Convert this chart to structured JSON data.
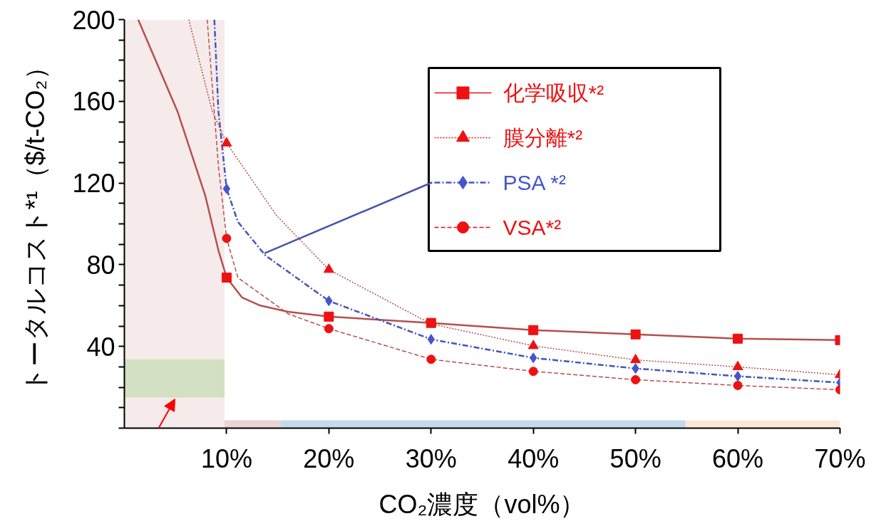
{
  "chart_data": {
    "type": "scatter",
    "xlabel": "CO₂濃度（vol%）",
    "ylabel": "トータルコスト*¹（$/t-CO₂）",
    "xlim": [
      0,
      70
    ],
    "ylim": [
      0,
      200
    ],
    "xticks": [
      {
        "value": 10,
        "label": "10%"
      },
      {
        "value": 20,
        "label": "20%"
      },
      {
        "value": 30,
        "label": "30%"
      },
      {
        "value": 40,
        "label": "40%"
      },
      {
        "value": 50,
        "label": "50%"
      },
      {
        "value": 60,
        "label": "60%"
      },
      {
        "value": 70,
        "label": "70%"
      }
    ],
    "yticks": [
      {
        "value": 0,
        "label": null
      },
      {
        "value": 10,
        "label": null
      },
      {
        "value": 20,
        "label": null
      },
      {
        "value": 30,
        "label": null
      },
      40,
      {
        "value": 50,
        "label": null
      },
      {
        "value": 60,
        "label": null
      },
      {
        "value": 70,
        "label": null
      },
      80,
      {
        "value": 90,
        "label": null
      },
      {
        "value": 100,
        "label": null
      },
      {
        "value": 110,
        "label": null
      },
      120,
      {
        "value": 130,
        "label": null
      },
      {
        "value": 140,
        "label": null
      },
      {
        "value": 150,
        "label": null
      },
      160,
      {
        "value": 170,
        "label": null
      },
      {
        "value": 180,
        "label": null
      },
      {
        "value": 190,
        "label": null
      },
      200
    ],
    "grid": false,
    "legend": "top right",
    "bands": [
      {
        "axis": "x",
        "from": 0,
        "to": 9.8,
        "color": "#f6ebeb"
      },
      {
        "axis": "y",
        "from": 15,
        "to": 33.7,
        "color": "#d3e0c1"
      }
    ],
    "series": [
      {
        "type": "area",
        "color": "#ecd4d4",
        "x": [
          0,
          15.3
        ],
        "values": [
          3.8,
          3.8
        ]
      },
      {
        "type": "area",
        "color": "#c6d9ef",
        "x": [
          15.3,
          54.9
        ],
        "values": [
          3.8,
          3.8
        ]
      },
      {
        "type": "area",
        "color": "#fbe7d8",
        "x": [
          54.9,
          70
        ],
        "values": [
          3.8,
          3.8
        ]
      },
      {
        "type": "line",
        "color": "#4455aa",
        "line_style": "solid",
        "marker": "none",
        "x": [
          13.7,
          30.1
        ],
        "values": [
          85.6,
          120.3
        ]
      },
      {
        "type": "line",
        "color": "#b5504d",
        "line_style": "solid",
        "marker": "none",
        "x": [
          1.35,
          5.2,
          7.9,
          9.2,
          10,
          11.5,
          13.3,
          16,
          20,
          30,
          40,
          50,
          60,
          70
        ],
        "values": [
          200,
          155,
          114,
          87,
          73.7,
          64,
          60,
          57,
          54.6,
          51.5,
          48,
          45.9,
          43.8,
          43.1
        ]
      },
      {
        "type": "line",
        "color": "#b5504d",
        "line_style": "dotted",
        "marker": "none",
        "x": [
          6.3,
          8.6,
          10,
          14.9,
          20,
          30,
          40,
          50,
          60,
          70
        ],
        "values": [
          200,
          155,
          139.5,
          104,
          77.6,
          51,
          40.3,
          33.4,
          30,
          26.1
        ]
      },
      {
        "type": "line",
        "color": "#4455bb",
        "line_style": "dashdot",
        "marker": "none",
        "x": [
          8.8,
          9.2,
          10,
          11.1,
          13.8,
          20,
          30,
          40,
          50,
          60,
          70
        ],
        "values": [
          200,
          155,
          117.2,
          101,
          84.5,
          62.3,
          43.5,
          34.4,
          29.2,
          25.4,
          22.3
        ]
      },
      {
        "type": "line",
        "color": "#b5504d",
        "line_style": "dashed",
        "marker": "none",
        "x": [
          8.1,
          9.2,
          10,
          11.1,
          16,
          20,
          30,
          40,
          50,
          60,
          70
        ],
        "values": [
          200,
          128,
          92.9,
          73.7,
          56,
          48.7,
          33.7,
          27.8,
          23.7,
          20.9,
          18.8
        ]
      },
      {
        "name": "化学吸収*²",
        "color": "#ee1111",
        "marker": "square",
        "line_style": "solid",
        "x": [
          10,
          20,
          30,
          40,
          50,
          60,
          70
        ],
        "values": [
          73.7,
          54.6,
          51.5,
          48,
          45.9,
          43.8,
          43.1
        ]
      },
      {
        "name": "膜分離*²",
        "color": "#ee1111",
        "marker": "triangle",
        "line_style": "dotted",
        "x": [
          10,
          20,
          30,
          40,
          50,
          60,
          70
        ],
        "values": [
          139.5,
          77.6,
          null,
          40.3,
          33.4,
          30,
          26.1
        ]
      },
      {
        "name": "PSA *²",
        "color": "#4455cc",
        "marker": "diamond",
        "line_style": "dashdot",
        "x": [
          10,
          20,
          30,
          40,
          50,
          60,
          70
        ],
        "values": [
          117.2,
          62.3,
          43.5,
          34.4,
          29.2,
          25.4,
          22.3
        ]
      },
      {
        "name": "VSA*²",
        "color": "#ee1111",
        "marker": "circle",
        "line_style": "dashed",
        "x": [
          10,
          20,
          30,
          40,
          50,
          60,
          70
        ],
        "values": [
          92.9,
          48.7,
          33.7,
          27.8,
          23.7,
          20.9,
          18.8
        ]
      }
    ]
  }
}
